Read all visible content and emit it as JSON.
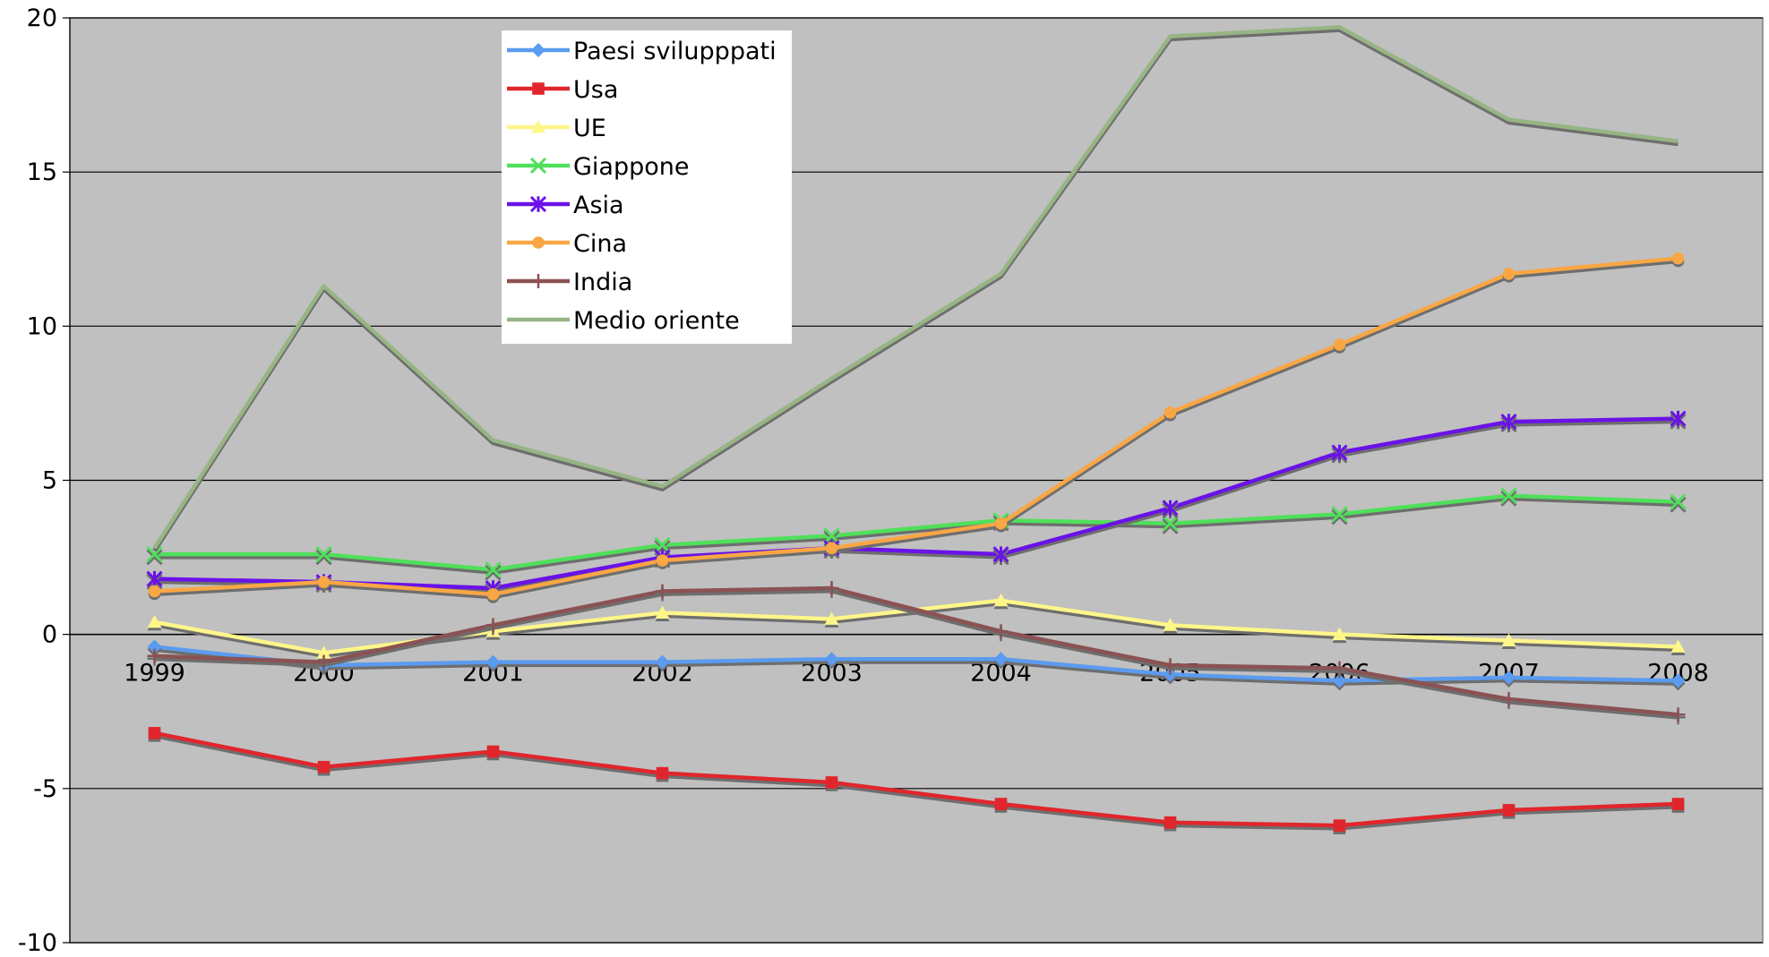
{
  "chart_data": {
    "type": "line",
    "categories": [
      "1999",
      "2000",
      "2001",
      "2002",
      "2003",
      "2004",
      "2005",
      "2006",
      "2007",
      "2008"
    ],
    "ylim": [
      -10,
      20
    ],
    "yticks": [
      -10,
      -5,
      0,
      5,
      10,
      15,
      20
    ],
    "grid": true,
    "legend_position": "top-center",
    "plot_background": "#c0c0c0",
    "series": [
      {
        "name": "Paesi svilupppati",
        "color": "#5b9bf0",
        "marker": "diamond",
        "values": [
          -0.4,
          -1.0,
          -0.9,
          -0.9,
          -0.8,
          -0.8,
          -1.3,
          -1.5,
          -1.4,
          -1.5
        ]
      },
      {
        "name": "Usa",
        "color": "#e0262c",
        "marker": "square",
        "values": [
          -3.2,
          -4.3,
          -3.8,
          -4.5,
          -4.8,
          -5.5,
          -6.1,
          -6.2,
          -5.7,
          -5.5
        ]
      },
      {
        "name": "UE",
        "color": "#fff68a",
        "marker": "triangle",
        "values": [
          0.4,
          -0.6,
          0.1,
          0.7,
          0.5,
          1.1,
          0.3,
          0.0,
          -0.2,
          -0.4
        ]
      },
      {
        "name": "Giappone",
        "color": "#4fe05a",
        "marker": "x",
        "values": [
          2.6,
          2.6,
          2.1,
          2.9,
          3.2,
          3.7,
          3.6,
          3.9,
          4.5,
          4.3
        ]
      },
      {
        "name": "Asia",
        "color": "#6a12e8",
        "marker": "star",
        "values": [
          1.8,
          1.7,
          1.5,
          2.5,
          2.8,
          2.6,
          4.1,
          5.9,
          6.9,
          7.0
        ]
      },
      {
        "name": "Cina",
        "color": "#f9a645",
        "marker": "circle",
        "values": [
          1.4,
          1.7,
          1.3,
          2.4,
          2.8,
          3.6,
          7.2,
          9.4,
          11.7,
          12.2
        ]
      },
      {
        "name": "India",
        "color": "#8b5253",
        "marker": "plus",
        "values": [
          -0.7,
          -0.9,
          0.3,
          1.4,
          1.5,
          0.1,
          -1.0,
          -1.1,
          -2.1,
          -2.6
        ]
      },
      {
        "name": "Medio oriente",
        "color": "#97b584",
        "marker": "none",
        "values": [
          2.8,
          11.3,
          6.3,
          4.8,
          8.3,
          11.7,
          19.4,
          19.7,
          16.7,
          16.0
        ]
      }
    ]
  }
}
